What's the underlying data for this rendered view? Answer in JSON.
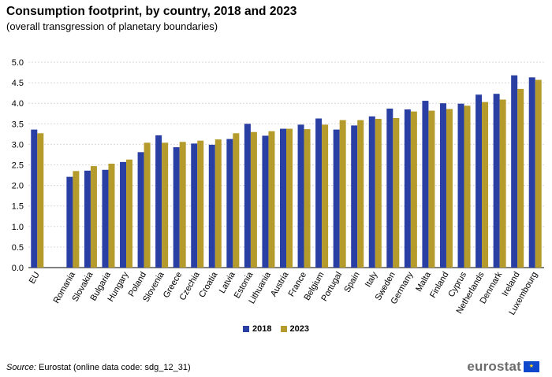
{
  "chart_data": {
    "type": "bar",
    "title": "Consumption footprint, by country, 2018 and 2023",
    "subtitle": "(overall transgression of planetary boundaries)",
    "xlabel": "",
    "ylabel": "",
    "ylim": [
      0,
      5
    ],
    "yticks": [
      "0.0",
      "0.5",
      "1.0",
      "1.5",
      "2.0",
      "2.5",
      "3.0",
      "3.5",
      "4.0",
      "4.5",
      "5.0"
    ],
    "grid": true,
    "legend_position": "bottom-center",
    "categories": [
      "EU",
      "",
      "Romania",
      "Slovakia",
      "Bulgaria",
      "Hungary",
      "Poland",
      "Slovenia",
      "Greece",
      "Czechia",
      "Croatia",
      "Latvia",
      "Estonia",
      "Lithuania",
      "Austria",
      "France",
      "Belgium",
      "Portugal",
      "Spain",
      "Italy",
      "Sweden",
      "Germany",
      "Malta",
      "Finland",
      "Cyprus",
      "Netherlands",
      "Denmark",
      "Ireland",
      "Luxembourg"
    ],
    "series": [
      {
        "name": "2018",
        "color": "#2a3fa3",
        "values": [
          3.36,
          null,
          2.21,
          2.36,
          2.38,
          2.57,
          2.81,
          3.22,
          2.93,
          3.02,
          2.99,
          3.13,
          3.5,
          3.21,
          3.38,
          3.48,
          3.63,
          3.36,
          3.46,
          3.68,
          3.87,
          3.85,
          4.06,
          4.0,
          3.99,
          4.21,
          4.23,
          4.68,
          4.63
        ]
      },
      {
        "name": "2023",
        "color": "#b59a2c",
        "values": [
          3.27,
          null,
          2.35,
          2.47,
          2.53,
          2.63,
          3.04,
          3.04,
          3.06,
          3.09,
          3.12,
          3.27,
          3.3,
          3.32,
          3.38,
          3.37,
          3.48,
          3.59,
          3.59,
          3.62,
          3.64,
          3.8,
          3.82,
          3.86,
          3.94,
          4.03,
          4.09,
          4.35,
          4.57
        ]
      }
    ]
  },
  "footer": {
    "source_label": "Source:",
    "source_text": "Eurostat (online data code: sdg_12_31)",
    "logo_text": "eurostat"
  }
}
